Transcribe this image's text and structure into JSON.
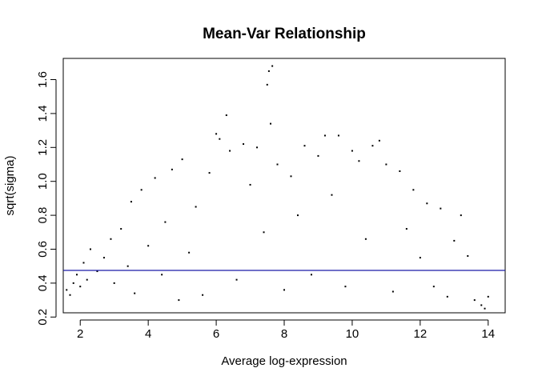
{
  "chart_data": {
    "type": "scatter",
    "title": "Mean-Var Relationship",
    "xlabel": "Average log-expression",
    "ylabel": "sqrt(sigma)",
    "xlim": [
      1.5,
      14.5
    ],
    "ylim": [
      0.225,
      1.725
    ],
    "x_ticks": [
      2,
      4,
      6,
      8,
      10,
      12,
      14
    ],
    "y_ticks": [
      0.2,
      0.4,
      0.6,
      0.8,
      1.0,
      1.2,
      1.4,
      1.6
    ],
    "y_tick_labels": [
      "0.2",
      "0.4",
      "0.6",
      "0.8",
      "1.0",
      "1.2",
      "1.4",
      "1.6"
    ],
    "grid": false,
    "reference_line": {
      "type": "horizontal",
      "y": 0.475,
      "color": "#1a1aa6"
    },
    "point_color": "#000000",
    "series": [
      {
        "points": [
          [
            1.6,
            0.36
          ],
          [
            1.7,
            0.33
          ],
          [
            1.8,
            0.4
          ],
          [
            1.9,
            0.45
          ],
          [
            2.0,
            0.38
          ],
          [
            2.1,
            0.52
          ],
          [
            2.2,
            0.42
          ],
          [
            2.3,
            0.6
          ],
          [
            2.5,
            0.47
          ],
          [
            2.7,
            0.55
          ],
          [
            2.9,
            0.66
          ],
          [
            3.0,
            0.4
          ],
          [
            3.2,
            0.72
          ],
          [
            3.4,
            0.5
          ],
          [
            3.5,
            0.88
          ],
          [
            3.6,
            0.34
          ],
          [
            3.8,
            0.95
          ],
          [
            4.0,
            0.62
          ],
          [
            4.2,
            1.02
          ],
          [
            4.4,
            0.45
          ],
          [
            4.5,
            0.76
          ],
          [
            4.7,
            1.07
          ],
          [
            4.9,
            0.3
          ],
          [
            5.0,
            1.13
          ],
          [
            5.2,
            0.58
          ],
          [
            5.4,
            0.85
          ],
          [
            5.6,
            0.33
          ],
          [
            5.8,
            1.05
          ],
          [
            6.0,
            1.28
          ],
          [
            6.1,
            1.25
          ],
          [
            6.3,
            1.39
          ],
          [
            6.4,
            1.18
          ],
          [
            6.6,
            0.42
          ],
          [
            6.8,
            1.22
          ],
          [
            7.0,
            0.98
          ],
          [
            7.2,
            1.2
          ],
          [
            7.4,
            0.7
          ],
          [
            7.5,
            1.57
          ],
          [
            7.55,
            1.65
          ],
          [
            7.6,
            1.34
          ],
          [
            7.65,
            1.68
          ],
          [
            7.8,
            1.1
          ],
          [
            8.0,
            0.36
          ],
          [
            8.2,
            1.03
          ],
          [
            8.4,
            0.8
          ],
          [
            8.6,
            1.21
          ],
          [
            8.8,
            0.45
          ],
          [
            9.0,
            1.15
          ],
          [
            9.2,
            1.27
          ],
          [
            9.4,
            0.92
          ],
          [
            9.6,
            1.27
          ],
          [
            9.8,
            0.38
          ],
          [
            10.0,
            1.18
          ],
          [
            10.2,
            1.12
          ],
          [
            10.4,
            0.66
          ],
          [
            10.6,
            1.21
          ],
          [
            10.8,
            1.24
          ],
          [
            11.0,
            1.1
          ],
          [
            11.2,
            0.35
          ],
          [
            11.4,
            1.06
          ],
          [
            11.6,
            0.72
          ],
          [
            11.8,
            0.95
          ],
          [
            12.0,
            0.55
          ],
          [
            12.2,
            0.87
          ],
          [
            12.4,
            0.38
          ],
          [
            12.6,
            0.84
          ],
          [
            12.8,
            0.32
          ],
          [
            13.0,
            0.65
          ],
          [
            13.2,
            0.8
          ],
          [
            13.4,
            0.56
          ],
          [
            13.6,
            0.3
          ],
          [
            13.8,
            0.27
          ],
          [
            13.9,
            0.25
          ],
          [
            14.0,
            0.32
          ]
        ]
      }
    ]
  }
}
